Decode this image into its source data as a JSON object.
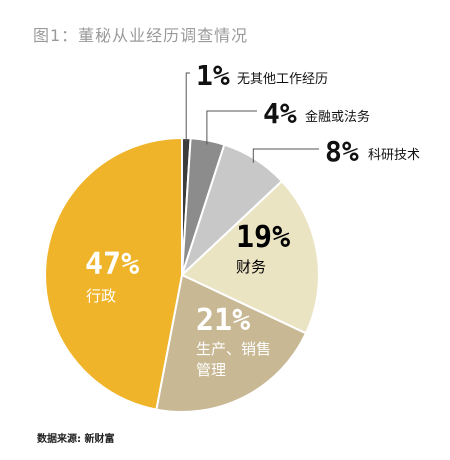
{
  "chart_data": {
    "type": "pie",
    "title": "图1：董秘从业经历调查情况",
    "slices": [
      {
        "label": "行政",
        "value": 47,
        "value_label": "47%",
        "color": "#f0b42a"
      },
      {
        "label": "生产、销售管理",
        "value": 21,
        "value_label": "21%",
        "color": "#c8b894"
      },
      {
        "label": "财务",
        "value": 19,
        "value_label": "19%",
        "color": "#ebe4c3"
      },
      {
        "label": "科研技术",
        "value": 8,
        "value_label": "8%",
        "color": "#c8c8c8"
      },
      {
        "label": "金融或法务",
        "value": 4,
        "value_label": "4%",
        "color": "#8c8c8c"
      },
      {
        "label": "无其他工作经历",
        "value": 1,
        "value_label": "1%",
        "color": "#3c3c3c"
      }
    ],
    "source": "数据来源: 新财富"
  }
}
